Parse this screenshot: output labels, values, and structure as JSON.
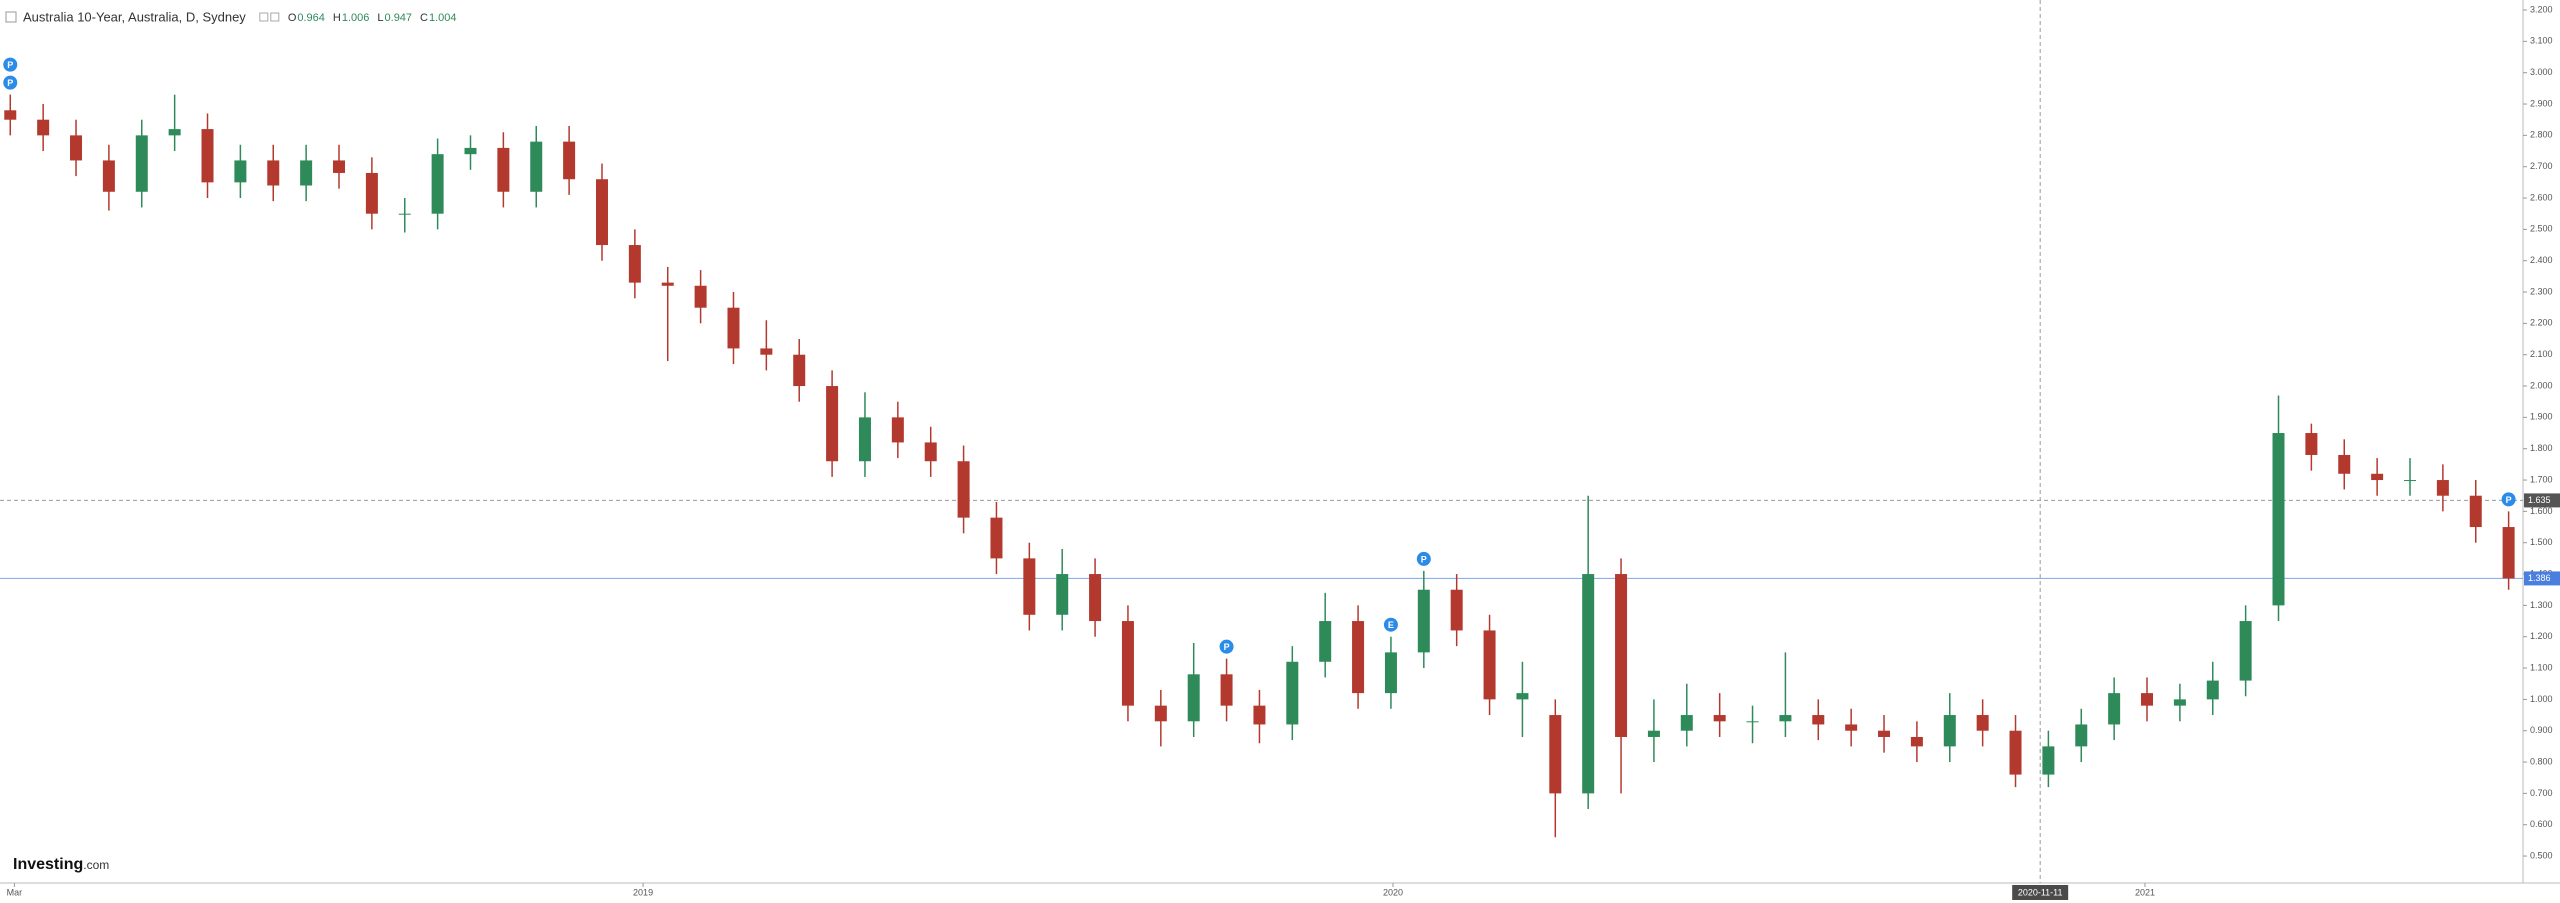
{
  "chart_data": {
    "type": "candlestick",
    "title": "Australia 10-Year, Australia, D, Sydney",
    "ohlc": [
      {
        "label": "O",
        "value": 0.964
      },
      {
        "label": "H",
        "value": 1.006
      },
      {
        "label": "L",
        "value": 0.947
      },
      {
        "label": "C",
        "value": 1.004
      }
    ],
    "logo": {
      "brand": "Investing",
      "suffix": ".com"
    },
    "up_color": "#2f8a5a",
    "down_color": "#b3392e",
    "x": [
      "2018-02-27",
      "2018-03-15",
      "2018-03-31",
      "2018-04-16",
      "2018-05-02",
      "2018-05-18",
      "2018-06-03",
      "2018-06-19",
      "2018-07-05",
      "2018-07-21",
      "2018-08-06",
      "2018-08-22",
      "2018-09-07",
      "2018-09-23",
      "2018-10-09",
      "2018-10-25",
      "2018-11-10",
      "2018-11-26",
      "2018-12-12",
      "2018-12-28",
      "2019-01-13",
      "2019-01-29",
      "2019-02-14",
      "2019-03-02",
      "2019-03-18",
      "2019-04-03",
      "2019-04-19",
      "2019-05-05",
      "2019-05-21",
      "2019-06-06",
      "2019-06-22",
      "2019-07-08",
      "2019-07-24",
      "2019-08-09",
      "2019-08-25",
      "2019-09-10",
      "2019-09-26",
      "2019-10-12",
      "2019-10-28",
      "2019-11-13",
      "2019-11-29",
      "2019-12-15",
      "2019-12-31",
      "2020-01-16",
      "2020-02-01",
      "2020-02-17",
      "2020-03-04",
      "2020-03-20",
      "2020-04-05",
      "2020-04-21",
      "2020-05-07",
      "2020-05-23",
      "2020-06-08",
      "2020-06-24",
      "2020-07-10",
      "2020-07-26",
      "2020-08-11",
      "2020-08-27",
      "2020-09-12",
      "2020-09-28",
      "2020-10-14",
      "2020-10-30",
      "2020-11-15",
      "2020-12-01",
      "2020-12-17",
      "2021-01-02",
      "2021-01-18",
      "2021-02-03",
      "2021-02-19",
      "2021-03-07",
      "2021-03-23",
      "2021-04-08",
      "2021-04-24",
      "2021-05-10",
      "2021-05-26",
      "2021-06-11",
      "2021-06-27"
    ],
    "open": [
      2.88,
      2.85,
      2.8,
      2.72,
      2.62,
      2.8,
      2.82,
      2.65,
      2.72,
      2.64,
      2.72,
      2.68,
      2.55,
      2.55,
      2.74,
      2.76,
      2.62,
      2.78,
      2.66,
      2.45,
      2.33,
      2.32,
      2.25,
      2.12,
      2.1,
      2.0,
      1.76,
      1.9,
      1.82,
      1.76,
      1.58,
      1.45,
      1.27,
      1.4,
      1.25,
      0.98,
      0.93,
      1.08,
      0.98,
      0.92,
      1.12,
      1.25,
      1.02,
      1.15,
      1.35,
      1.22,
      1.0,
      0.95,
      0.7,
      1.4,
      0.88,
      0.9,
      0.95,
      0.93,
      0.93,
      0.95,
      0.92,
      0.9,
      0.88,
      0.85,
      0.95,
      0.9,
      0.76,
      0.85,
      0.92,
      1.02,
      0.98,
      1.0,
      1.06,
      1.3,
      1.85,
      1.78,
      1.72,
      1.7,
      1.7,
      1.65,
      1.55
    ],
    "high": [
      2.93,
      2.9,
      2.85,
      2.77,
      2.85,
      2.93,
      2.87,
      2.77,
      2.77,
      2.77,
      2.77,
      2.73,
      2.6,
      2.79,
      2.8,
      2.81,
      2.83,
      2.83,
      2.71,
      2.5,
      2.38,
      2.37,
      2.3,
      2.21,
      2.15,
      2.05,
      1.98,
      1.95,
      1.87,
      1.81,
      1.63,
      1.5,
      1.48,
      1.45,
      1.3,
      1.03,
      1.18,
      1.13,
      1.03,
      1.17,
      1.34,
      1.3,
      1.2,
      1.41,
      1.4,
      1.27,
      1.12,
      1.0,
      1.65,
      1.45,
      1.0,
      1.05,
      1.02,
      0.98,
      1.15,
      1.0,
      0.97,
      0.95,
      0.93,
      1.02,
      1.0,
      0.95,
      0.9,
      0.97,
      1.07,
      1.07,
      1.05,
      1.12,
      1.3,
      1.97,
      1.88,
      1.83,
      1.77,
      1.77,
      1.75,
      1.7,
      1.6
    ],
    "low": [
      2.8,
      2.75,
      2.67,
      2.56,
      2.57,
      2.75,
      2.6,
      2.6,
      2.59,
      2.59,
      2.63,
      2.5,
      2.49,
      2.5,
      2.69,
      2.57,
      2.57,
      2.61,
      2.4,
      2.28,
      2.08,
      2.2,
      2.07,
      2.05,
      1.95,
      1.71,
      1.71,
      1.77,
      1.71,
      1.53,
      1.4,
      1.22,
      1.22,
      1.2,
      0.93,
      0.85,
      0.88,
      0.93,
      0.86,
      0.87,
      1.07,
      0.97,
      0.97,
      1.1,
      1.17,
      0.95,
      0.88,
      0.56,
      0.65,
      0.7,
      0.8,
      0.85,
      0.88,
      0.86,
      0.88,
      0.87,
      0.85,
      0.83,
      0.8,
      0.8,
      0.85,
      0.72,
      0.72,
      0.8,
      0.87,
      0.93,
      0.93,
      0.95,
      1.01,
      1.25,
      1.73,
      1.67,
      1.65,
      1.65,
      1.6,
      1.5,
      1.35
    ],
    "close": [
      2.85,
      2.8,
      2.72,
      2.62,
      2.8,
      2.82,
      2.65,
      2.72,
      2.64,
      2.72,
      2.68,
      2.55,
      2.55,
      2.74,
      2.76,
      2.62,
      2.78,
      2.66,
      2.45,
      2.33,
      2.32,
      2.25,
      2.12,
      2.1,
      2.0,
      1.76,
      1.9,
      1.82,
      1.76,
      1.58,
      1.45,
      1.27,
      1.4,
      1.25,
      0.98,
      0.93,
      1.08,
      0.98,
      0.92,
      1.12,
      1.25,
      1.02,
      1.15,
      1.35,
      1.22,
      1.0,
      1.02,
      0.7,
      1.4,
      0.88,
      0.9,
      0.95,
      0.93,
      0.93,
      0.95,
      0.92,
      0.9,
      0.88,
      0.85,
      0.95,
      0.9,
      0.76,
      0.85,
      0.92,
      1.02,
      0.98,
      1.0,
      1.06,
      1.25,
      1.85,
      1.78,
      1.72,
      1.7,
      1.7,
      1.65,
      1.55,
      1.386
    ],
    "events": [
      {
        "x": "2018-02-27",
        "label": "P"
      },
      {
        "x": "2018-02-27",
        "label": "P"
      },
      {
        "x": "2019-10-12",
        "label": "P"
      },
      {
        "x": "2019-12-31",
        "label": "E"
      },
      {
        "x": "2020-01-16",
        "label": "P"
      },
      {
        "x": "2021-06-27",
        "label": "P"
      }
    ],
    "event_color": "#2b8be8",
    "xlim": [
      "2018-02-22",
      "2021-07-04"
    ],
    "xticks": [
      {
        "value": "2018-03-01",
        "label": "Mar"
      },
      {
        "value": "2019-01-01",
        "label": "2019"
      },
      {
        "value": "2020-01-01",
        "label": "2020"
      },
      {
        "value": "2021-01-01",
        "label": "2021"
      }
    ],
    "ylim": [
      0.414,
      3.232
    ],
    "yticks": [
      {
        "value": 0.5,
        "label": "0.500"
      },
      {
        "value": 0.6,
        "label": "0.600"
      },
      {
        "value": 0.7,
        "label": "0.700"
      },
      {
        "value": 0.8,
        "label": "0.800"
      },
      {
        "value": 0.9,
        "label": "0.900"
      },
      {
        "value": 1.0,
        "label": "1.000"
      },
      {
        "value": 1.1,
        "label": "1.100"
      },
      {
        "value": 1.2,
        "label": "1.200"
      },
      {
        "value": 1.3,
        "label": "1.300"
      },
      {
        "value": 1.4,
        "label": "1.400"
      },
      {
        "value": 1.5,
        "label": "1.500"
      },
      {
        "value": 1.6,
        "label": "1.600"
      },
      {
        "value": 1.7,
        "label": "1.700"
      },
      {
        "value": 1.8,
        "label": "1.800"
      },
      {
        "value": 1.9,
        "label": "1.900"
      },
      {
        "value": 2.0,
        "label": "2.000"
      },
      {
        "value": 2.1,
        "label": "2.100"
      },
      {
        "value": 2.2,
        "label": "2.200"
      },
      {
        "value": 2.3,
        "label": "2.300"
      },
      {
        "value": 2.4,
        "label": "2.400"
      },
      {
        "value": 2.5,
        "label": "2.500"
      },
      {
        "value": 2.6,
        "label": "2.600"
      },
      {
        "value": 2.7,
        "label": "2.700"
      },
      {
        "value": 2.8,
        "label": "2.800"
      },
      {
        "value": 2.9,
        "label": "2.900"
      },
      {
        "value": 3.0,
        "label": "3.000"
      },
      {
        "value": 3.1,
        "label": "3.100"
      },
      {
        "value": 3.2,
        "label": "3.200"
      }
    ],
    "crosshair": {
      "x": "2020-11-11",
      "y": 1.635
    },
    "last_price": 1.386,
    "last_price_color": "#4a7fe0"
  }
}
